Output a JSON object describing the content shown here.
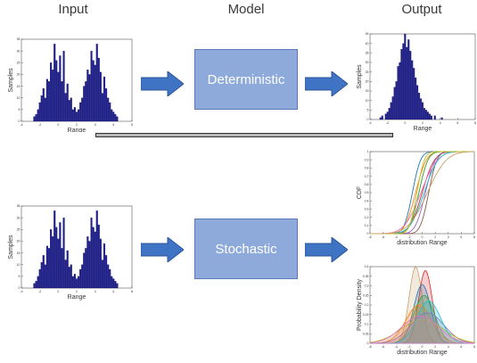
{
  "headers": {
    "input": "Input",
    "model": "Model",
    "output": "Output"
  },
  "models": {
    "top": "Deterministic",
    "bottom": "Stochastic"
  },
  "colors": {
    "bar": "#1f1f8a",
    "box": "#8eaadb",
    "arrow": "#3f74c4"
  },
  "histogram": {
    "xlabel": "Range",
    "ylabel": "Samples",
    "xticks": [
      "-4",
      "-2",
      "0",
      "2",
      "4",
      "6",
      "8"
    ],
    "yticks": [
      "0",
      "5",
      "10",
      "15",
      "20",
      "25",
      "30",
      "35"
    ]
  },
  "output_histogram": {
    "xlabel": "Range",
    "ylabel": "Samples",
    "xticks": [
      "-4",
      "-2",
      "0",
      "2",
      "4",
      "6",
      "8"
    ],
    "yticks": [
      "0",
      "5",
      "10",
      "15",
      "20",
      "25",
      "30",
      "35",
      "40",
      "45"
    ]
  },
  "cdf_plot": {
    "xlabel": "distribution Range",
    "ylabel": "CDF",
    "xticks": [
      "-8",
      "-6",
      "-4",
      "-2",
      "0",
      "2",
      "4",
      "6",
      "8"
    ],
    "yticks": [
      "0",
      "0.1",
      "0.2",
      "0.3",
      "0.4",
      "0.5",
      "0.6",
      "0.7",
      "0.8",
      "0.9",
      "1"
    ]
  },
  "pdf_plot": {
    "xlabel": "distribution Range",
    "ylabel": "Probability Density",
    "xticks": [
      "-8",
      "-6",
      "-4",
      "-2",
      "0",
      "2",
      "4",
      "6",
      "8"
    ],
    "yticks": [
      "0",
      "0.05",
      "0.1",
      "0.15",
      "0.2",
      "0.25",
      "0.3",
      "0.35",
      "0.4"
    ]
  },
  "chart_data": [
    {
      "type": "bar",
      "name": "input-histogram",
      "xlabel": "Range",
      "ylabel": "Samples",
      "xlim": [
        -4,
        8
      ],
      "ylim": [
        0,
        35
      ],
      "x": [
        -2.6,
        -2.4,
        -2.2,
        -2.0,
        -1.8,
        -1.6,
        -1.4,
        -1.2,
        -1.0,
        -0.8,
        -0.6,
        -0.4,
        -0.2,
        0.0,
        0.2,
        0.4,
        0.6,
        0.8,
        1.0,
        1.2,
        1.4,
        1.6,
        1.8,
        2.0,
        2.2,
        2.4,
        2.6,
        2.8,
        3.0,
        3.2,
        3.4,
        3.6,
        3.8,
        4.0,
        4.2,
        4.4,
        4.6,
        4.8,
        5.0,
        5.2,
        5.4,
        5.6,
        5.8,
        6.0,
        6.2,
        6.4
      ],
      "values": [
        2,
        3,
        5,
        8,
        11,
        14,
        10,
        18,
        17,
        25,
        22,
        33,
        26,
        21,
        28,
        17,
        30,
        12,
        16,
        9,
        10,
        5,
        6,
        4,
        5,
        8,
        10,
        15,
        17,
        22,
        20,
        30,
        26,
        24,
        33,
        27,
        21,
        12,
        19,
        14,
        10,
        8,
        5,
        4,
        3,
        2
      ]
    },
    {
      "type": "bar",
      "name": "deterministic-output-histogram",
      "xlabel": "Range",
      "ylabel": "Samples",
      "xlim": [
        -4,
        8
      ],
      "ylim": [
        0,
        45
      ],
      "x": [
        -2.8,
        -2.6,
        -2.2,
        -2.0,
        -1.8,
        -1.6,
        -1.4,
        -1.2,
        -1.0,
        -0.8,
        -0.6,
        -0.4,
        -0.2,
        0.0,
        0.2,
        0.4,
        0.6,
        0.8,
        1.0,
        1.2,
        1.4,
        1.6,
        1.8,
        2.0,
        2.2,
        2.4,
        2.6,
        2.8,
        3.0,
        3.4,
        4.2
      ],
      "values": [
        1,
        2,
        3,
        4,
        6,
        9,
        12,
        17,
        20,
        28,
        30,
        37,
        40,
        45,
        38,
        42,
        36,
        31,
        27,
        22,
        18,
        14,
        11,
        9,
        6,
        5,
        4,
        3,
        2,
        2,
        1
      ]
    },
    {
      "type": "line",
      "name": "cdf-curves",
      "xlabel": "distribution Range",
      "ylabel": "CDF",
      "xlim": [
        -8,
        8
      ],
      "ylim": [
        0,
        1
      ],
      "series": [
        {
          "mean": -1.5,
          "sd": 1.0,
          "color": "#1f77b4"
        },
        {
          "mean": -1.0,
          "sd": 1.3,
          "color": "#ff7f0e"
        },
        {
          "mean": -0.5,
          "sd": 1.1,
          "color": "#2ca02c"
        },
        {
          "mean": 0.0,
          "sd": 1.5,
          "color": "#d62728"
        },
        {
          "mean": 0.5,
          "sd": 1.2,
          "color": "#9467bd"
        },
        {
          "mean": 1.0,
          "sd": 1.0,
          "color": "#8c564b"
        },
        {
          "mean": -0.2,
          "sd": 2.0,
          "color": "#e377c2"
        },
        {
          "mean": 0.3,
          "sd": 1.7,
          "color": "#17becf"
        },
        {
          "mean": -0.8,
          "sd": 0.9,
          "color": "#bcbd22"
        },
        {
          "mean": 0.8,
          "sd": 2.3,
          "color": "#c8a06a"
        }
      ]
    },
    {
      "type": "area",
      "name": "pdf-curves",
      "xlabel": "distribution Range",
      "ylabel": "Probability Density",
      "xlim": [
        -8,
        8
      ],
      "ylim": [
        0,
        0.4
      ],
      "series": [
        {
          "mean": -1.0,
          "sd": 1.0,
          "color": "#c8a06a"
        },
        {
          "mean": 0.5,
          "sd": 1.05,
          "color": "#d62728"
        },
        {
          "mean": 0.0,
          "sd": 1.3,
          "color": "#1f77b4"
        },
        {
          "mean": 0.3,
          "sd": 1.6,
          "color": "#2ca02c"
        },
        {
          "mean": -0.5,
          "sd": 2.0,
          "color": "#ff7f0e"
        },
        {
          "mean": 0.8,
          "sd": 2.5,
          "color": "#9467bd"
        },
        {
          "mean": 0.0,
          "sd": 3.2,
          "color": "#bcbd22"
        },
        {
          "mean": 1.0,
          "sd": 1.8,
          "color": "#17becf"
        },
        {
          "mean": -0.3,
          "sd": 2.8,
          "color": "#e377c2"
        }
      ]
    }
  ]
}
